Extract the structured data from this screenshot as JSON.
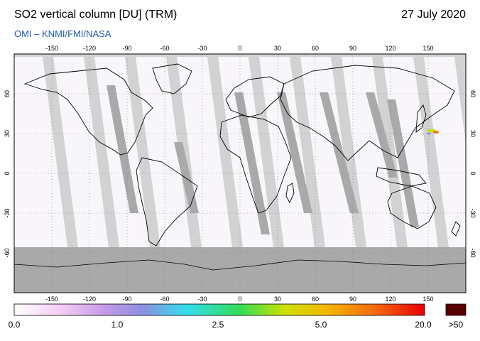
{
  "header": {
    "title": "SO2 vertical column [DU] (TRM)",
    "date": "27 July 2020",
    "subtitle": "OMI  –  KNMI/FMI/NASA"
  },
  "map": {
    "projection": "equirectangular",
    "lon_range": [
      -180,
      180
    ],
    "lat_range": [
      -90,
      90
    ],
    "lon_ticks": [
      "-150",
      "-120",
      "-90",
      "-60",
      "-30",
      "0",
      "30",
      "60",
      "90",
      "120",
      "150"
    ],
    "lat_ticks": [
      "60",
      "30",
      "0",
      "-30",
      "-60"
    ],
    "grid": "dotted",
    "colors": {
      "no_data": "#d2d2d2",
      "overlap": "#a9a9a9",
      "coverage": "#f8f6fa",
      "coastline": "#000000"
    }
  },
  "colorbar": {
    "labels": [
      "0.0",
      "1.0",
      "2.5",
      "5.0",
      "20.0"
    ],
    "overflow_label": ">50",
    "overflow_color": "#5a0000",
    "gradient": [
      "#ffffff",
      "#f3c9f3",
      "#c49ae6",
      "#8f8ee0",
      "#33ddee",
      "#33dd55",
      "#cde100",
      "#f3b800",
      "#f36a10",
      "#e60000"
    ]
  }
}
